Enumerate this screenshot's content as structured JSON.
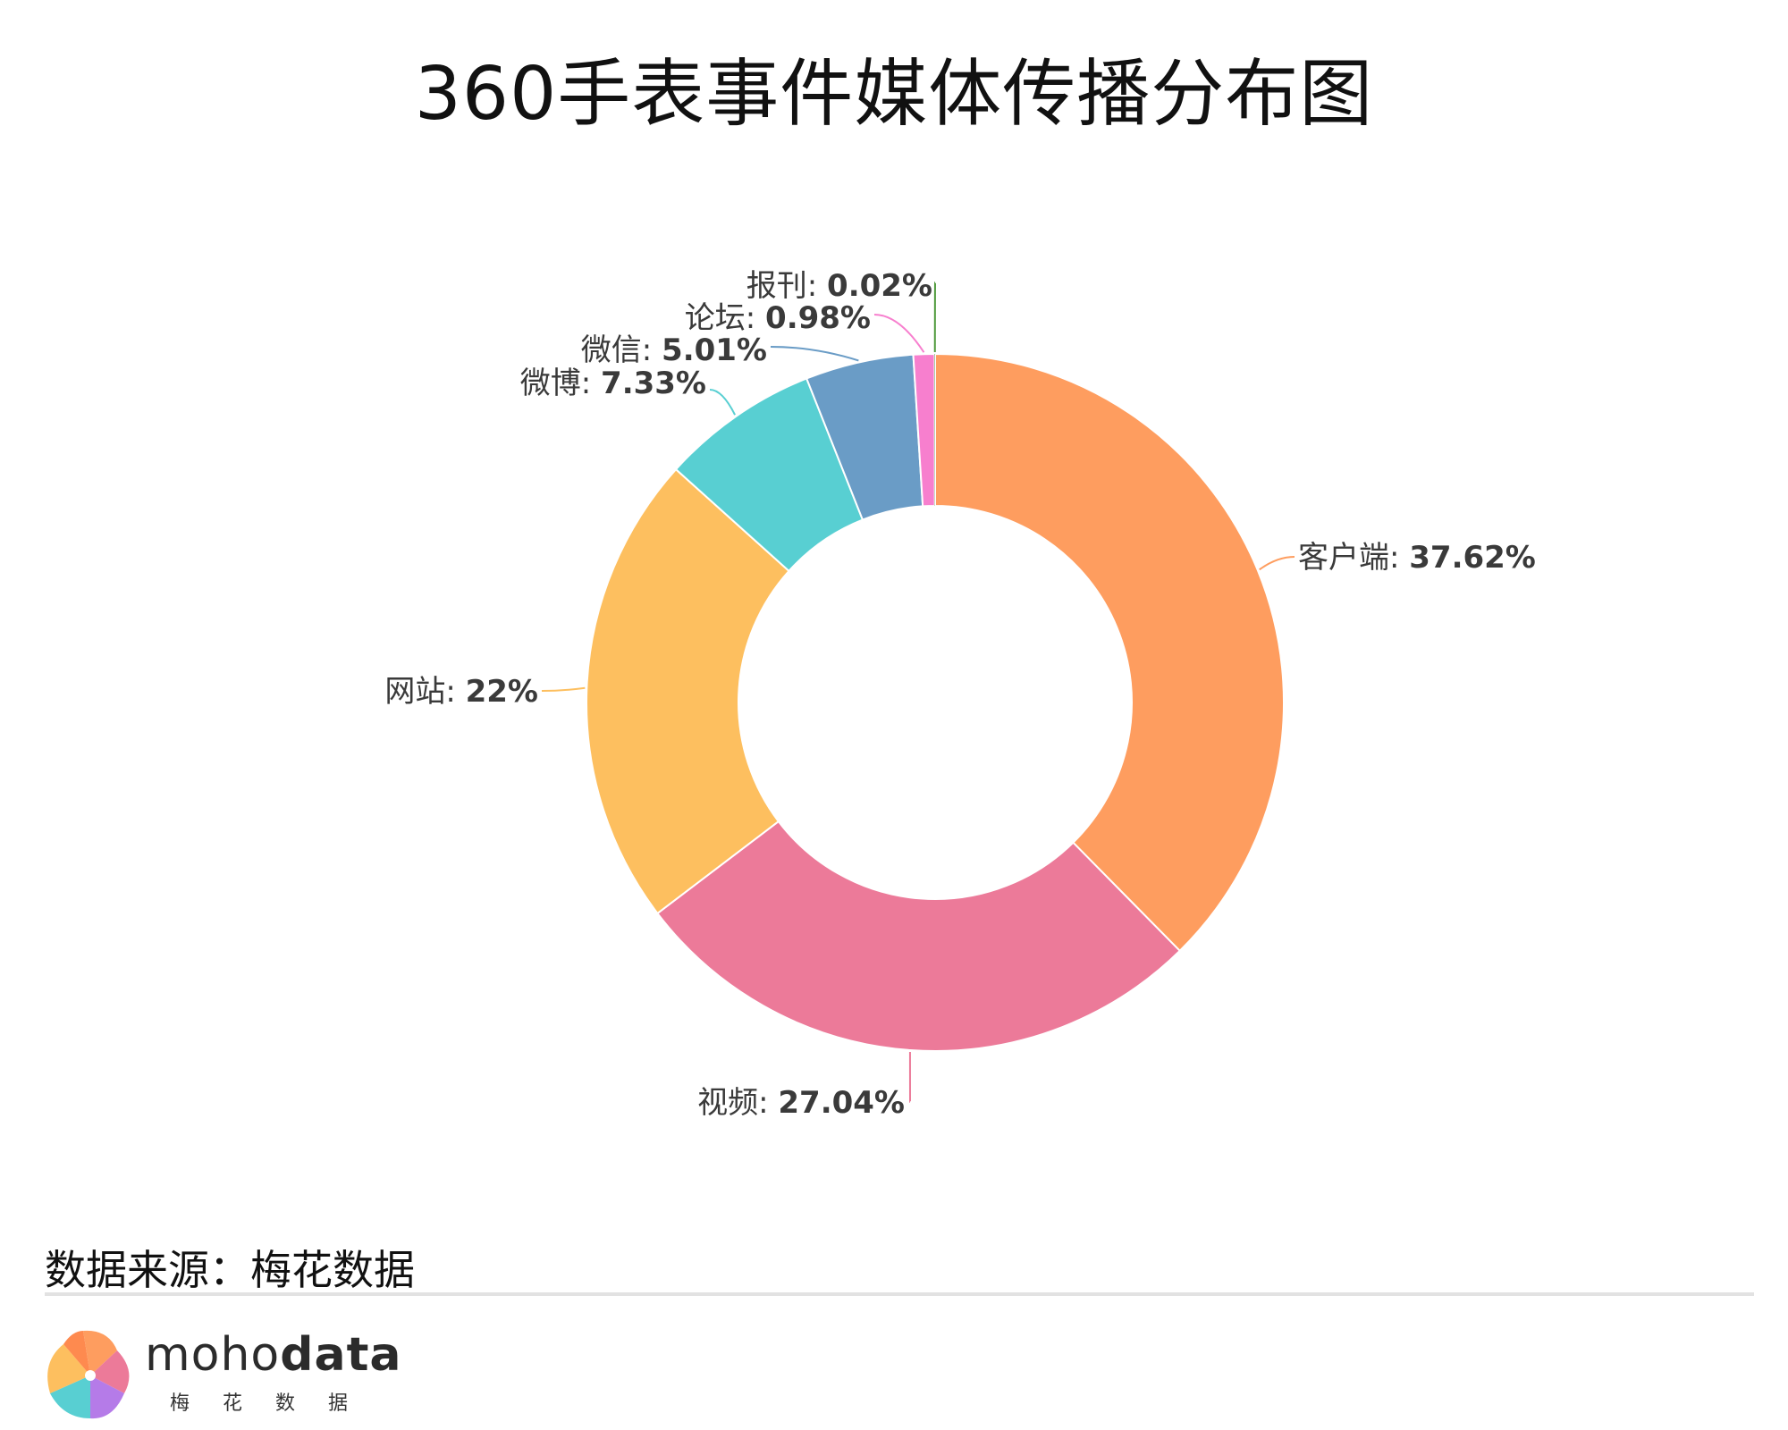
{
  "title": "360手表事件媒体传播分布图",
  "source_label": "数据来源：梅花数据",
  "brand": {
    "name_light": "moho",
    "name_bold": "data",
    "subtitle": "梅花数据"
  },
  "chart_data": {
    "type": "pie",
    "variant": "donut",
    "title": "360手表事件媒体传播分布图",
    "slices": [
      {
        "label": "客户端",
        "value": 37.62,
        "display": "37.62%",
        "color": "#FE9D5F"
      },
      {
        "label": "视频",
        "value": 27.04,
        "display": "27.04%",
        "color": "#EC7A99"
      },
      {
        "label": "网站",
        "value": 22,
        "display": "22%",
        "color": "#FDBF5F"
      },
      {
        "label": "微博",
        "value": 7.33,
        "display": "7.33%",
        "color": "#58CFD2"
      },
      {
        "label": "微信",
        "value": 5.01,
        "display": "5.01%",
        "color": "#6A9CC6"
      },
      {
        "label": "论坛",
        "value": 0.98,
        "display": "0.98%",
        "color": "#F77FCE"
      },
      {
        "label": "报刊",
        "value": 0.02,
        "display": "0.02%",
        "color": "#4F9A3C"
      }
    ]
  }
}
